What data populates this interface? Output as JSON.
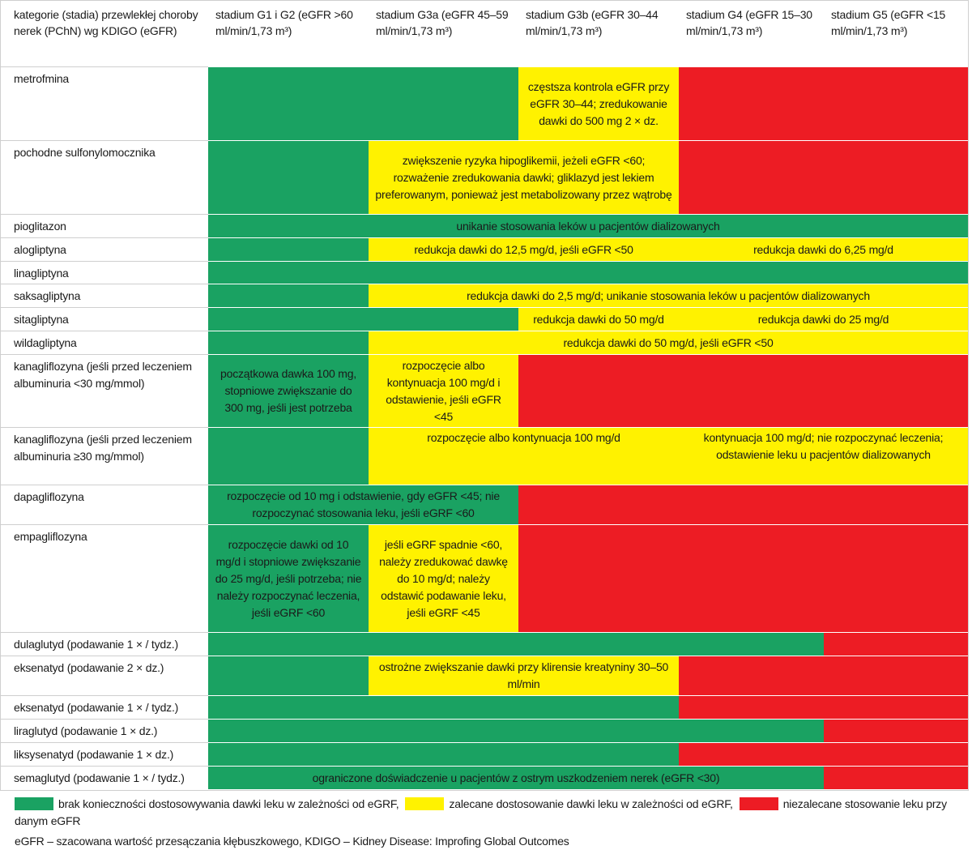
{
  "header": [
    "kategorie (stadia) przewlekłej choroby nerek (PChN) wg KDIGO (eGFR)",
    "stadium G1 i G2 (eGFR >60 ml/min/1,73 m³)",
    "stadium G3a (eGFR 45–59 ml/min/1,73 m³)",
    "stadium G3b  (eGFR 30–44 ml/min/1,73 m³)",
    "stadium G4 (eGFR 15–30 ml/min/1,73 m³)",
    "stadium G5 (eGFR <15 ml/min/1,73 m³)"
  ],
  "rows": [
    {
      "label": "metrofmina",
      "segments": [
        {
          "span": 2,
          "color": "#1aa262"
        },
        {
          "span": 1,
          "color": "#fff200",
          "text": "częstsza kontrola eGFR przy eGFR 30–44; zredukowanie dawki do 500 mg 2 × dz."
        },
        {
          "span": 2,
          "color": "#ed1c24"
        }
      ]
    },
    {
      "label": "pochodne sulfonylomocznika",
      "segments": [
        {
          "span": 1,
          "color": "#1aa262"
        },
        {
          "span": 2,
          "color": "#fff200",
          "text": "zwiększenie ryzyka hipoglikemii, jeżeli eGFR <60; rozważenie zredukowania dawki; gliklazyd jest lekiem preferowanym, ponieważ jest metabolizowany przez wątrobę"
        },
        {
          "span": 2,
          "color": "#ed1c24"
        }
      ]
    },
    {
      "label": "pioglitazon",
      "segments": [
        {
          "span": 5,
          "color": "#1aa262",
          "text": "unikanie stosowania leków u pacjentów dializowanych"
        }
      ]
    },
    {
      "label": "alogliptyna",
      "segments": [
        {
          "span": 1,
          "color": "#1aa262"
        },
        {
          "span": 2,
          "color": "#fff200",
          "text": "redukcja dawki do 12,5 mg/d, jeśli eGFR <50"
        },
        {
          "span": 2,
          "color": "#fff200",
          "text": "redukcja dawki do 6,25 mg/d"
        }
      ]
    },
    {
      "label": "linagliptyna",
      "segments": [
        {
          "span": 5,
          "color": "#1aa262"
        }
      ]
    },
    {
      "label": "saksagliptyna",
      "segments": [
        {
          "span": 1,
          "color": "#1aa262"
        },
        {
          "span": 4,
          "color": "#fff200",
          "text": "redukcja dawki do 2,5 mg/d; unikanie stosowania leków u pacjentów dializowanych"
        }
      ]
    },
    {
      "label": "sitagliptyna",
      "segments": [
        {
          "span": 2,
          "color": "#1aa262"
        },
        {
          "span": 1,
          "color": "#fff200",
          "text": "redukcja dawki do 50 mg/d"
        },
        {
          "span": 2,
          "color": "#fff200",
          "text": "redukcja dawki do 25 mg/d"
        }
      ]
    },
    {
      "label": "wildagliptyna",
      "segments": [
        {
          "span": 1,
          "color": "#1aa262"
        },
        {
          "span": 4,
          "color": "#fff200",
          "text": "redukcja dawki do 50 mg/d, jeśli eGFR <50"
        }
      ]
    },
    {
      "label": "kanagliflozyna (jeśli przed leczeniem albuminuria <30 mg/mmol)",
      "segments": [
        {
          "span": 1,
          "color": "#1aa262",
          "text": "początkowa dawka 100 mg, stopniowe zwiększanie do 300 mg, jeśli jest potrzeba"
        },
        {
          "span": 1,
          "color": "#fff200",
          "text": "rozpoczęcie albo kontynuacja 100 mg/d i odstawienie, jeśli eGFR <45"
        },
        {
          "span": 3,
          "color": "#ed1c24"
        }
      ]
    },
    {
      "label": "kanagliflozyna (jeśli przed leczeniem albuminuria ≥30 mg/mmol)",
      "segments": [
        {
          "span": 1,
          "color": "#1aa262"
        },
        {
          "span": 2,
          "color": "#fff200",
          "text": "rozpoczęcie albo kontynuacja 100 mg/d"
        },
        {
          "span": 2,
          "color": "#fff200",
          "text": "kontynuacja 100 mg/d; nie rozpoczynać leczenia; odstawienie leku u pacjentów dializowanych"
        }
      ]
    },
    {
      "label": "dapagliflozyna",
      "segments": [
        {
          "span": 2,
          "color": "#1aa262",
          "text": "rozpoczęcie od 10 mg i odstawienie, gdy eGFR <45; nie rozpoczynać stosowania leku, jeśli eGRF <60"
        },
        {
          "span": 3,
          "color": "#ed1c24"
        }
      ]
    },
    {
      "label": "empagliflozyna",
      "segments": [
        {
          "span": 1,
          "color": "#1aa262",
          "text": "rozpoczęcie dawki od 10 mg/d i stopniowe zwiększanie do 25 mg/d, jeśli potrzeba; nie należy rozpoczynać leczenia, jeśli eGRF <60"
        },
        {
          "span": 1,
          "color": "#fff200",
          "text": "jeśli eGRF spadnie <60, należy zredukować dawkę do 10 mg/d; należy odstawić podawanie leku, jeśli eGRF <45"
        },
        {
          "span": 3,
          "color": "#ed1c24"
        }
      ]
    },
    {
      "label": "dulaglutyd (podawanie 1 × / tydz.)",
      "segments": [
        {
          "span": 4,
          "color": "#1aa262"
        },
        {
          "span": 1,
          "color": "#ed1c24"
        }
      ]
    },
    {
      "label": "eksenatyd (podawanie 2 × dz.)",
      "segments": [
        {
          "span": 1,
          "color": "#1aa262"
        },
        {
          "span": 2,
          "color": "#fff200",
          "text": "ostrożne zwiększanie dawki przy klirensie kreatyniny 30–50 ml/min"
        },
        {
          "span": 2,
          "color": "#ed1c24"
        }
      ]
    },
    {
      "label": "eksenatyd (podawanie 1 × / tydz.)",
      "segments": [
        {
          "span": 3,
          "color": "#1aa262"
        },
        {
          "span": 2,
          "color": "#ed1c24"
        }
      ]
    },
    {
      "label": "liraglutyd (podawanie 1 × dz.)",
      "segments": [
        {
          "span": 4,
          "color": "#1aa262"
        },
        {
          "span": 1,
          "color": "#ed1c24"
        }
      ]
    },
    {
      "label": "liksysenatyd (podawanie 1 × dz.)",
      "segments": [
        {
          "span": 3,
          "color": "#1aa262"
        },
        {
          "span": 2,
          "color": "#ed1c24"
        }
      ]
    },
    {
      "label": "semaglutyd (podawanie 1 × / tydz.)",
      "segments": [
        {
          "span": 4,
          "color": "#1aa262",
          "text": "ograniczone doświadczenie u pacjentów z ostrym uszkodzeniem nerek (eGFR <30)"
        },
        {
          "span": 1,
          "color": "#ed1c24"
        }
      ]
    }
  ],
  "legend": [
    {
      "color": "#1aa262",
      "label": "brak konieczności dostosowywania dawki leku w zależności od eGRF,"
    },
    {
      "color": "#fff200",
      "label": "zalecane dostosowanie dawki leku w zależności od eGRF,"
    },
    {
      "color": "#ed1c24",
      "label": "niezalecane stosowanie leku przy danym eGFR"
    }
  ],
  "note": "eGFR – szacowana wartość przesączania kłębuszkowego, KDIGO – Kidney Disease: Improfing Global Outcomes"
}
